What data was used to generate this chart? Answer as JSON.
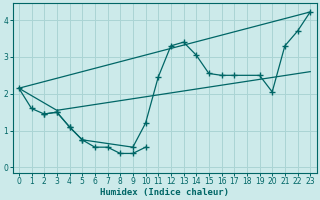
{
  "xlabel": "Humidex (Indice chaleur)",
  "bg_color": "#cceaea",
  "grid_color": "#aad4d4",
  "line_color": "#006666",
  "xlim": [
    -0.5,
    23.5
  ],
  "ylim": [
    -0.15,
    4.45
  ],
  "xticks": [
    0,
    1,
    2,
    3,
    4,
    5,
    6,
    7,
    8,
    9,
    10,
    11,
    12,
    13,
    14,
    15,
    16,
    17,
    18,
    19,
    20,
    21,
    22,
    23
  ],
  "yticks": [
    0,
    1,
    2,
    3,
    4
  ],
  "series": [
    {
      "x": [
        0,
        3,
        23
      ],
      "y": [
        2.15,
        1.55,
        2.6
      ],
      "markers": false
    },
    {
      "x": [
        0,
        23
      ],
      "y": [
        2.15,
        4.22
      ],
      "markers": false
    },
    {
      "x": [
        0,
        1,
        2,
        3,
        4,
        5,
        9,
        10,
        11,
        12,
        13,
        14,
        15,
        16,
        17,
        19,
        20,
        21,
        22,
        23
      ],
      "y": [
        2.15,
        1.6,
        1.45,
        1.5,
        1.1,
        0.75,
        0.55,
        1.2,
        2.45,
        3.3,
        3.4,
        3.05,
        2.55,
        2.5,
        2.5,
        2.5,
        2.05,
        3.3,
        3.7,
        4.22
      ],
      "markers": true
    },
    {
      "x": [
        2,
        3,
        4,
        5,
        6,
        7,
        8,
        9,
        10
      ],
      "y": [
        1.45,
        1.5,
        1.1,
        0.75,
        0.55,
        0.55,
        0.38,
        0.38,
        0.55
      ],
      "markers": true
    }
  ]
}
